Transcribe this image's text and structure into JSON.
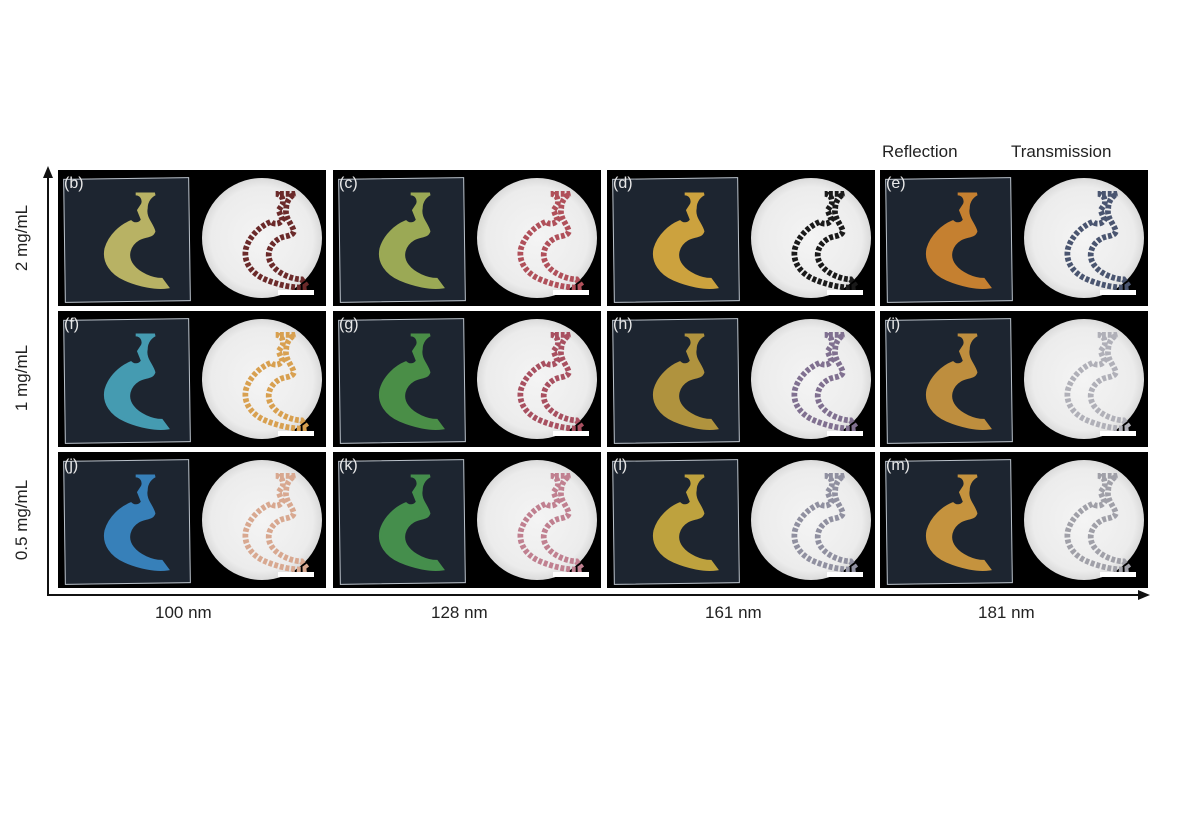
{
  "headers": {
    "reflection": "Reflection",
    "transmission": "Transmission"
  },
  "x_axis": {
    "labels": [
      "100 nm",
      "128 nm",
      "161 nm",
      "181 nm"
    ]
  },
  "y_axis": {
    "labels": [
      "2 mg/mL",
      "1 mg/mL",
      "0.5 mg/mL"
    ]
  },
  "panels": [
    {
      "label": "(b)",
      "reflection_color": "#c9c26a",
      "transmission_color": "#6b2a2a"
    },
    {
      "label": "(c)",
      "reflection_color": "#a9b85a",
      "transmission_color": "#b0505a"
    },
    {
      "label": "(d)",
      "reflection_color": "#e0b040",
      "transmission_color": "#1a1a1a"
    },
    {
      "label": "(e)",
      "reflection_color": "#d88a30",
      "transmission_color": "#4a5570"
    },
    {
      "label": "(f)",
      "reflection_color": "#4aa8c0",
      "transmission_color": "#d8a050"
    },
    {
      "label": "(g)",
      "reflection_color": "#4f9a4a",
      "transmission_color": "#a85060"
    },
    {
      "label": "(h)",
      "reflection_color": "#c0a040",
      "transmission_color": "#807090"
    },
    {
      "label": "(i)",
      "reflection_color": "#d09a40",
      "transmission_color": "#b0b0b8"
    },
    {
      "label": "(j)",
      "reflection_color": "#3a8ac8",
      "transmission_color": "#d8a890"
    },
    {
      "label": "(k)",
      "reflection_color": "#4a9a50",
      "transmission_color": "#c08090"
    },
    {
      "label": "(l)",
      "reflection_color": "#d0b040",
      "transmission_color": "#9090a0"
    },
    {
      "label": "(m)",
      "reflection_color": "#d8a040",
      "transmission_color": "#a0a0a8"
    }
  ]
}
